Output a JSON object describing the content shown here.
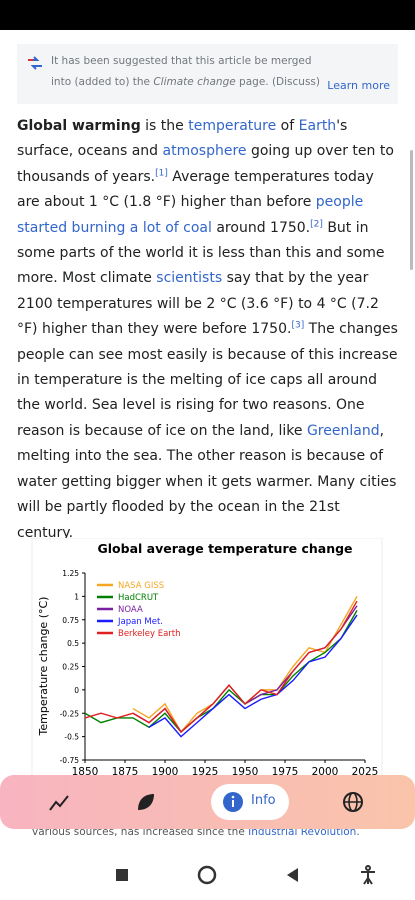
{
  "notice": {
    "segments": [
      {
        "text": "It has been suggested that this article be merged into (added to) the "
      },
      {
        "text": "Climate change",
        "style": "italic"
      },
      {
        "text": " page. (Discuss)"
      }
    ],
    "action": "Learn more"
  },
  "article": {
    "segments": [
      {
        "text": "Global warming",
        "style": "bold"
      },
      {
        "text": " is the "
      },
      {
        "text": "temperature",
        "style": "link"
      },
      {
        "text": " of "
      },
      {
        "text": "Earth",
        "style": "link"
      },
      {
        "text": "'s surface, oceans and "
      },
      {
        "text": "atmosphere",
        "style": "link"
      },
      {
        "text": " going up over ten to thousands of years."
      },
      {
        "text": "[1]",
        "style": "ref"
      },
      {
        "text": " Average temperatures today are about 1 °C (1.8 °F) higher than before "
      },
      {
        "text": "people started burning a lot of coal",
        "style": "link"
      },
      {
        "text": " around 1750."
      },
      {
        "text": "[2]",
        "style": "ref"
      },
      {
        "text": " But in some parts of the world it is less than this and some more. Most climate "
      },
      {
        "text": "scientists",
        "style": "link"
      },
      {
        "text": " say that by the year 2100 temperatures will be 2 °C (3.6 °F) to 4 °C (7.2 °F) higher than they were before 1750."
      },
      {
        "text": "[3]",
        "style": "ref"
      },
      {
        "text": " The changes people can see most easily is because of this increase in temperature is the melting of ice caps all around the world. Sea level is rising for two reasons. One reason is because of ice on the land, like "
      },
      {
        "text": "Greenland",
        "style": "link"
      },
      {
        "text": ", melting into the sea. The other reason is because of water getting bigger when it gets warmer. Many cities will be partly flooded by the ocean in the 21st century."
      }
    ]
  },
  "figure": {
    "chart": {
      "type": "line",
      "title": "Global average temperature change",
      "y_label": "Temperature change (°C)",
      "x": [
        1850,
        1860,
        1870,
        1880,
        1890,
        1900,
        1910,
        1920,
        1930,
        1940,
        1950,
        1960,
        1970,
        1980,
        1990,
        2000,
        2010,
        2020
      ],
      "series": [
        {
          "name": "NASA GISS",
          "color": "#f5a623",
          "values": [
            null,
            null,
            null,
            -0.2,
            -0.3,
            -0.15,
            -0.45,
            -0.25,
            -0.15,
            0.05,
            -0.15,
            0.0,
            0.0,
            0.25,
            0.45,
            0.4,
            0.7,
            1.0
          ]
        },
        {
          "name": "HadCRUT",
          "color": "#008000",
          "values": [
            -0.25,
            -0.35,
            -0.3,
            -0.3,
            -0.4,
            -0.25,
            -0.45,
            -0.3,
            -0.2,
            0.0,
            -0.15,
            -0.05,
            -0.05,
            0.15,
            0.3,
            0.4,
            0.55,
            0.85
          ]
        },
        {
          "name": "NOAA",
          "color": "#7b1fa2",
          "values": [
            null,
            null,
            null,
            -0.25,
            -0.35,
            -0.2,
            -0.45,
            -0.3,
            -0.15,
            0.05,
            -0.15,
            -0.05,
            0.0,
            0.2,
            0.4,
            0.45,
            0.65,
            0.9
          ]
        },
        {
          "name": "Japan Met.",
          "color": "#1a1aff",
          "values": [
            null,
            null,
            null,
            null,
            -0.4,
            -0.3,
            -0.5,
            -0.35,
            -0.2,
            -0.05,
            -0.2,
            -0.1,
            -0.05,
            0.1,
            0.3,
            0.35,
            0.55,
            0.8
          ]
        },
        {
          "name": "Berkeley Earth",
          "color": "#e02020",
          "values": [
            -0.3,
            -0.25,
            -0.3,
            -0.25,
            -0.35,
            -0.2,
            -0.45,
            -0.3,
            -0.15,
            0.05,
            -0.15,
            0.0,
            -0.05,
            0.2,
            0.4,
            0.45,
            0.65,
            0.95
          ]
        }
      ],
      "xlim": [
        1850,
        2025
      ],
      "xticks": [
        1850,
        1875,
        1900,
        1925,
        1950,
        1975,
        2000,
        2025
      ],
      "ylim": [
        -0.75,
        1.25
      ],
      "yticks": [
        -0.75,
        -0.5,
        -0.25,
        0,
        0.25,
        0.5,
        0.75,
        1,
        1.25
      ]
    },
    "caption": {
      "segments": [
        {
          "text": "various sources, has increased since the "
        },
        {
          "text": "Industrial Revolution",
          "style": "link"
        },
        {
          "text": "."
        }
      ]
    }
  },
  "bottom_nav": {
    "active": "Info"
  }
}
